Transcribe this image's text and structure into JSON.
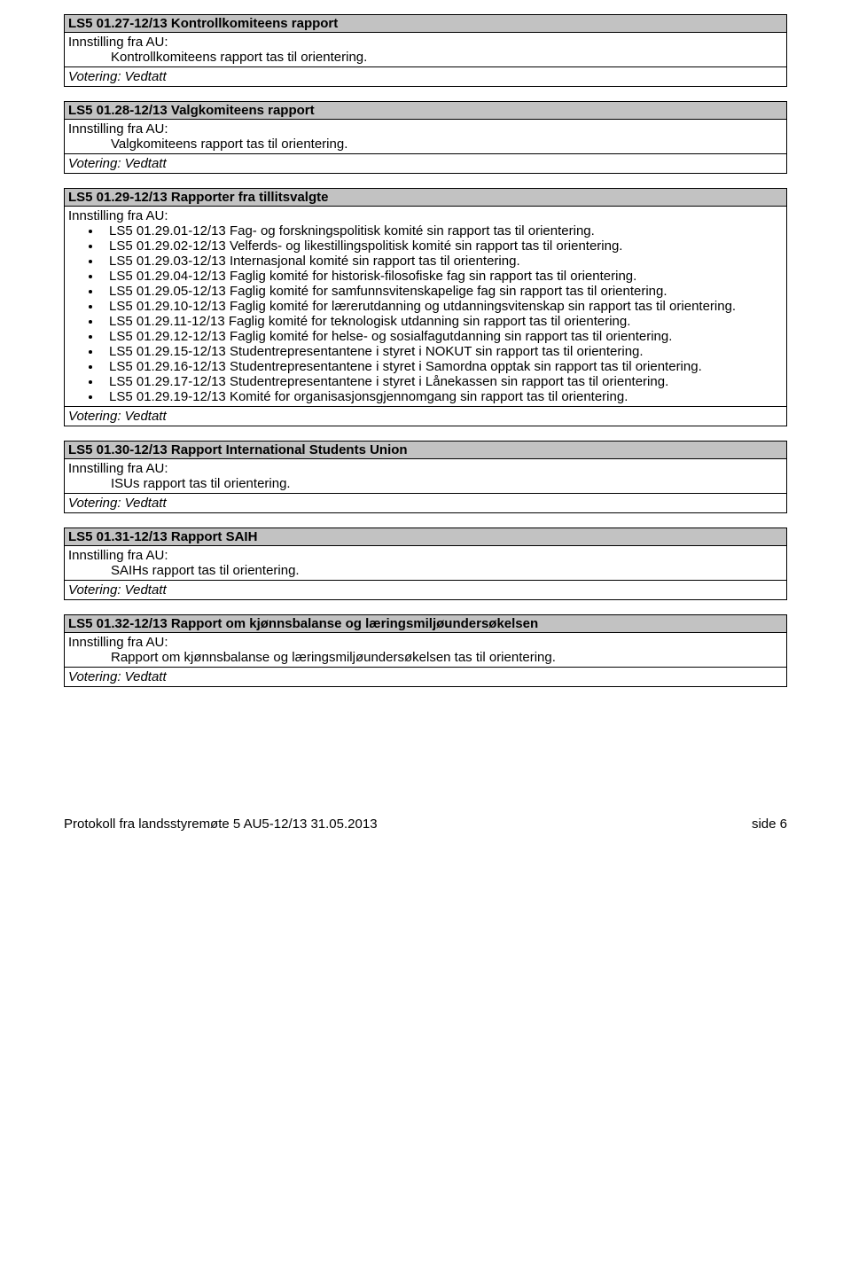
{
  "sections": [
    {
      "header": "LS5 01.27-12/13 Kontrollkomiteens rapport",
      "instilling": "Innstilling fra AU:",
      "indented": "Kontrollkomiteens rapport tas til orientering.",
      "votering": "Votering: Vedtatt"
    },
    {
      "header": "LS5 01.28-12/13 Valgkomiteens rapport",
      "instilling": "Innstilling fra AU:",
      "indented": "Valgkomiteens rapport tas til orientering.",
      "votering": "Votering: Vedtatt"
    },
    {
      "header": "LS5 01.29-12/13 Rapporter fra tillitsvalgte",
      "instilling": "Innstilling fra AU:",
      "bullets": [
        "LS5 01.29.01-12/13 Fag- og forskningspolitisk komité sin rapport tas til orientering.",
        "LS5 01.29.02-12/13 Velferds- og likestillingspolitisk komité sin rapport tas til orientering.",
        "LS5 01.29.03-12/13 Internasjonal komité sin rapport tas til orientering.",
        "LS5 01.29.04-12/13 Faglig komité for historisk-filosofiske fag sin rapport tas til orientering.",
        "LS5 01.29.05-12/13 Faglig komité for samfunnsvitenskapelige fag sin rapport tas til orientering.",
        "LS5 01.29.10-12/13 Faglig komité for lærerutdanning og utdanningsvitenskap sin rapport tas til orientering.",
        "LS5 01.29.11-12/13 Faglig komité for teknologisk utdanning sin rapport tas til orientering.",
        "LS5 01.29.12-12/13 Faglig komité for helse- og sosialfagutdanning sin rapport tas til orientering.",
        "LS5 01.29.15-12/13 Studentrepresentantene i styret i NOKUT sin rapport tas til orientering.",
        "LS5 01.29.16-12/13 Studentrepresentantene i styret i Samordna opptak sin rapport tas til orientering.",
        "LS5 01.29.17-12/13 Studentrepresentantene i styret i Lånekassen sin rapport tas til orientering.",
        "LS5 01.29.19-12/13 Komité for organisasjonsgjennomgang sin rapport tas til orientering."
      ],
      "votering": "Votering: Vedtatt"
    },
    {
      "header": "LS5 01.30-12/13 Rapport International Students Union",
      "instilling": "Innstilling fra AU:",
      "indented": "ISUs rapport tas til orientering.",
      "votering": "Votering: Vedtatt"
    },
    {
      "header": "LS5 01.31-12/13 Rapport SAIH",
      "instilling": "Innstilling fra AU:",
      "indented": "SAIHs rapport tas til orientering.",
      "votering": "Votering: Vedtatt"
    },
    {
      "header": "LS5 01.32-12/13 Rapport om kjønnsbalanse og læringsmiljøundersøkelsen",
      "instilling": "Innstilling fra AU:",
      "indented": "Rapport om kjønnsbalanse og læringsmiljøundersøkelsen tas til orientering.",
      "votering": "Votering: Vedtatt"
    }
  ],
  "footer": {
    "left": "Protokoll fra landsstyremøte 5 AU5-12/13 31.05.2013",
    "right": "side 6"
  }
}
